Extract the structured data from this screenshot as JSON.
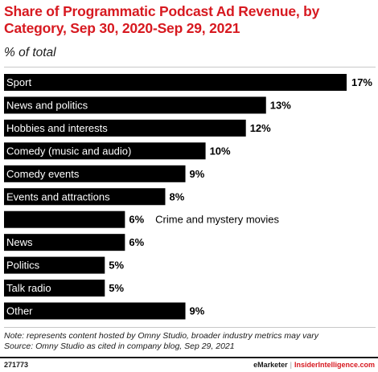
{
  "title": "Share of Programmatic Podcast Ad Revenue, by Category, Sep 30, 2020-Sep 29, 2021",
  "subtitle": "% of total",
  "notes": {
    "note": "Note: represents content hosted by Omny Studio, broader industry metrics may vary",
    "source": "Source: Omny Studio as cited in company blog, Sep 29, 2021"
  },
  "footer": {
    "chart_id": "271773",
    "brand_a": "eMarketer",
    "separator": "|",
    "brand_b": "InsiderIntelligence.com"
  },
  "colors": {
    "bar": "#000000",
    "bar_label_text": "#ffffff",
    "value_text": "#000000",
    "accent": "#d71920"
  },
  "chart_data": {
    "type": "bar",
    "orientation": "horizontal",
    "categories": [
      "Sport",
      "News and politics",
      "Hobbies and interests",
      "Comedy (music and audio)",
      "Comedy events",
      "Events and attractions",
      "Crime and mystery movies",
      "News",
      "Politics",
      "Talk radio",
      "Other"
    ],
    "values": [
      17,
      13,
      12,
      10,
      9,
      8,
      6,
      6,
      5,
      5,
      9
    ],
    "value_labels": [
      "17%",
      "13%",
      "12%",
      "10%",
      "9%",
      "8%",
      "6%",
      "6%",
      "5%",
      "5%",
      "9%"
    ],
    "unit": "%",
    "xlim": [
      0,
      17
    ],
    "grid": false,
    "legend": "none"
  }
}
